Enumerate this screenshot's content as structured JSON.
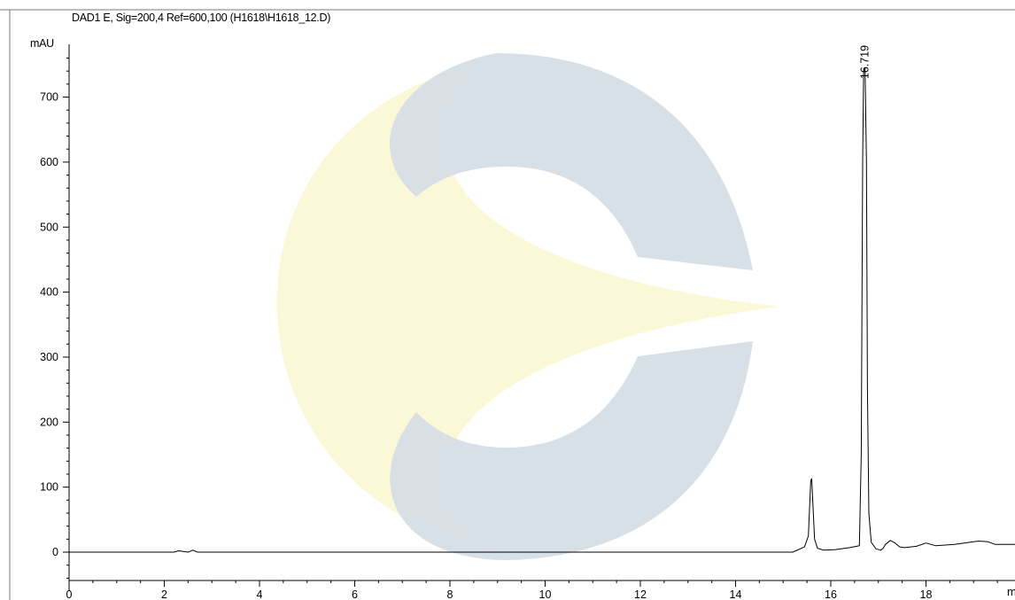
{
  "chart_data": {
    "type": "line",
    "title": "DAD1 E, Sig=200,4 Ref=600,100 (H1618\\H1618_12.D)",
    "ylabel": "mAU",
    "xlabel": "m",
    "xlim": [
      0,
      20
    ],
    "ylim": [
      -40,
      790
    ],
    "x_ticks": [
      "0",
      "2",
      "4",
      "6",
      "8",
      "10",
      "12",
      "14",
      "16",
      "18"
    ],
    "y_ticks": [
      "0",
      "100",
      "200",
      "300",
      "400",
      "500",
      "600",
      "700"
    ],
    "peak_labels": [
      {
        "label": "16.719",
        "x": 16.719,
        "y": 745
      }
    ],
    "series": [
      {
        "x": [
          0,
          2.2,
          2.3,
          2.4,
          2.5,
          2.6,
          2.7,
          2.9,
          15.2,
          15.45,
          15.53,
          15.58,
          15.6,
          15.62,
          15.66,
          15.72,
          15.85,
          16.1,
          16.4,
          16.6,
          16.64,
          16.67,
          16.69,
          16.72,
          16.75,
          16.77,
          16.8,
          16.85,
          16.95,
          17.05,
          17.1,
          17.15,
          17.25,
          17.35,
          17.45,
          17.55,
          17.8,
          18.0,
          18.2,
          18.6,
          18.9,
          19.1,
          19.3,
          19.45,
          19.6,
          20.0
        ],
        "y": [
          0,
          0,
          2,
          1,
          0,
          3,
          0,
          0,
          0,
          8,
          25,
          110,
          113,
          80,
          20,
          6,
          3,
          4,
          7,
          10,
          150,
          600,
          740,
          745,
          600,
          250,
          60,
          15,
          5,
          3,
          6,
          12,
          18,
          14,
          8,
          7,
          9,
          14,
          10,
          12,
          15,
          17,
          16,
          12,
          12,
          12
        ]
      }
    ]
  }
}
